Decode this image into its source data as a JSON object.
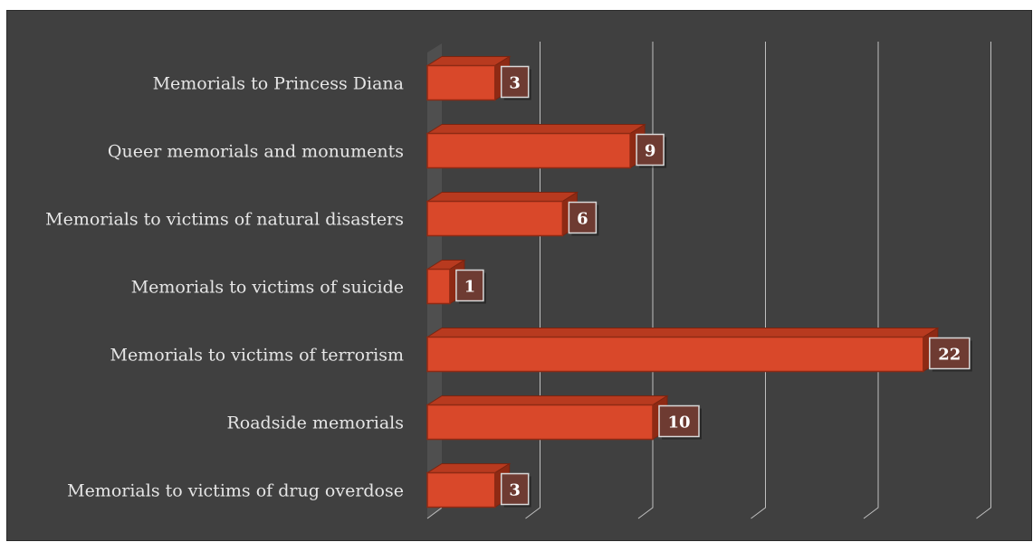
{
  "chart_data": {
    "type": "bar",
    "orientation": "horizontal",
    "style": "3d",
    "categories": [
      "Memorials to Princess Diana",
      "Queer memorials and monuments",
      "Memorials to victims of natural disasters",
      "Memorials to victims of suicide",
      "Memorials to victims of terrorism",
      "Roadside memorials",
      "Memorials to victims of drug overdose"
    ],
    "values": [
      3,
      9,
      6,
      1,
      22,
      10,
      3
    ],
    "title": "",
    "xlabel": "",
    "ylabel": "",
    "xlim": [
      0,
      25
    ],
    "grid": true,
    "legend": "none",
    "colors": {
      "background": "#404040",
      "bar_front": "#d9482a",
      "bar_top": "#b83a1f",
      "bar_side": "#8e2a14",
      "label_box": "#6e3b32",
      "text": "#e6e6e6"
    }
  }
}
